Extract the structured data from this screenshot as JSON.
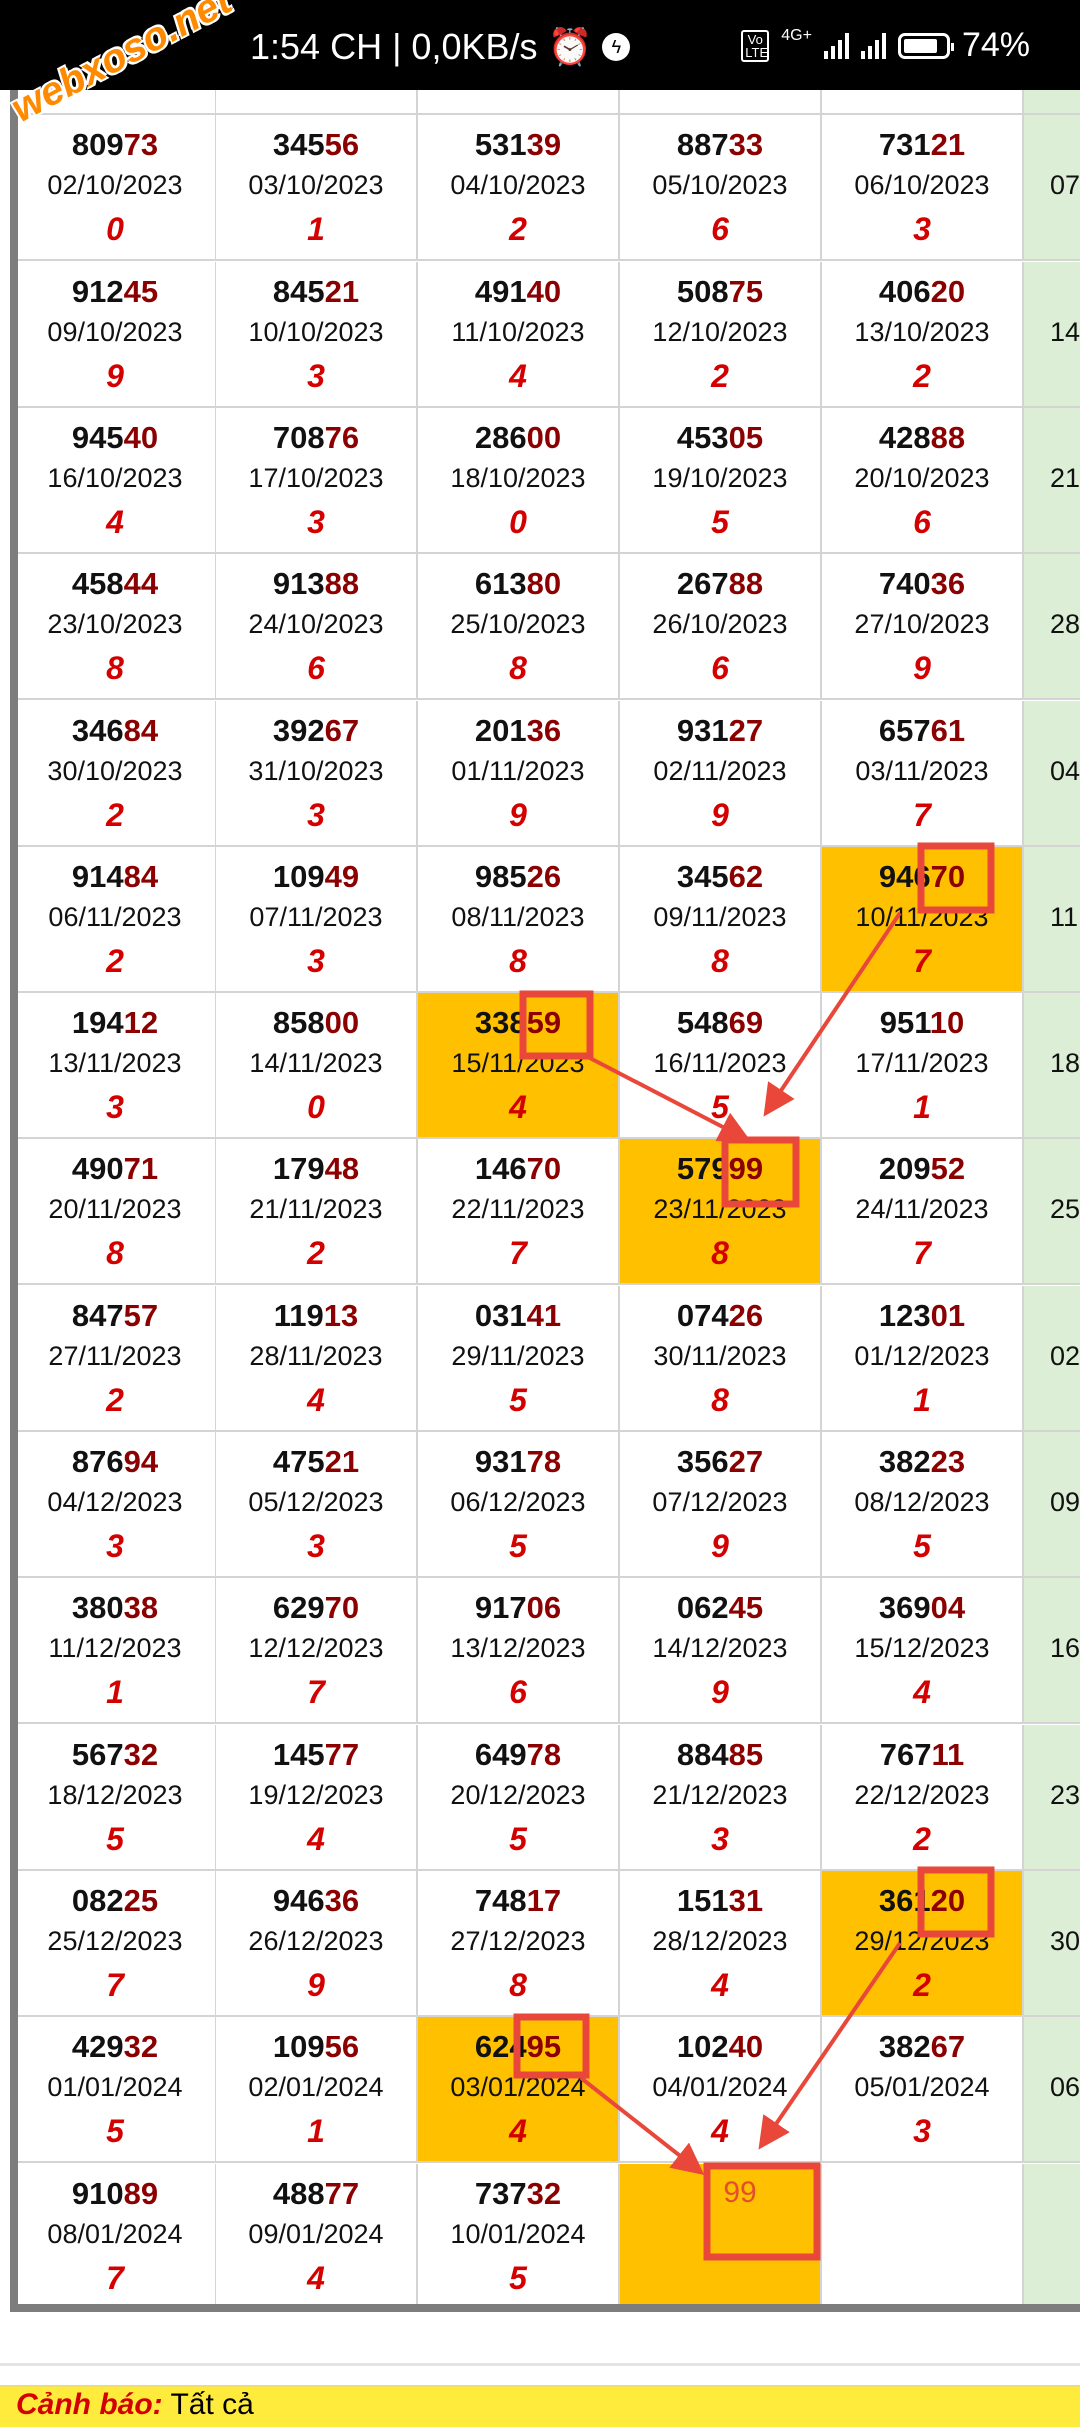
{
  "status_bar": {
    "time": "1:54 CH",
    "net_speed": "| 0,0KB/s",
    "network": "4G+",
    "volte": "Vo LTE",
    "battery": "74%",
    "icons": [
      "alarm-icon",
      "messenger-icon",
      "volte-icon",
      "signal-icon",
      "signal-icon",
      "battery-icon"
    ]
  },
  "watermark": "webxoso.net",
  "colors": {
    "highlight": "#ffc000",
    "suffix": "#8b0000",
    "digit": "#d40000",
    "marker": "#e8473a",
    "next_column": "#dcefd6"
  },
  "rows": [
    {
      "cells": [
        {
          "n": "80973",
          "d": "02/10/2023",
          "g": "0"
        },
        {
          "n": "34556",
          "d": "03/10/2023",
          "g": "1"
        },
        {
          "n": "53139",
          "d": "04/10/2023",
          "g": "2"
        },
        {
          "n": "88733",
          "d": "05/10/2023",
          "g": "6"
        },
        {
          "n": "73121",
          "d": "06/10/2023",
          "g": "3"
        }
      ],
      "next": "07"
    },
    {
      "cells": [
        {
          "n": "91245",
          "d": "09/10/2023",
          "g": "9"
        },
        {
          "n": "84521",
          "d": "10/10/2023",
          "g": "3"
        },
        {
          "n": "49140",
          "d": "11/10/2023",
          "g": "4"
        },
        {
          "n": "50875",
          "d": "12/10/2023",
          "g": "2"
        },
        {
          "n": "40620",
          "d": "13/10/2023",
          "g": "2"
        }
      ],
      "next": "14"
    },
    {
      "cells": [
        {
          "n": "94540",
          "d": "16/10/2023",
          "g": "4"
        },
        {
          "n": "70876",
          "d": "17/10/2023",
          "g": "3"
        },
        {
          "n": "28600",
          "d": "18/10/2023",
          "g": "0"
        },
        {
          "n": "45305",
          "d": "19/10/2023",
          "g": "5"
        },
        {
          "n": "42888",
          "d": "20/10/2023",
          "g": "6"
        }
      ],
      "next": "21"
    },
    {
      "cells": [
        {
          "n": "45844",
          "d": "23/10/2023",
          "g": "8"
        },
        {
          "n": "91388",
          "d": "24/10/2023",
          "g": "6"
        },
        {
          "n": "61380",
          "d": "25/10/2023",
          "g": "8"
        },
        {
          "n": "26788",
          "d": "26/10/2023",
          "g": "6"
        },
        {
          "n": "74036",
          "d": "27/10/2023",
          "g": "9"
        }
      ],
      "next": "28"
    },
    {
      "cells": [
        {
          "n": "34684",
          "d": "30/10/2023",
          "g": "2"
        },
        {
          "n": "39267",
          "d": "31/10/2023",
          "g": "3"
        },
        {
          "n": "20136",
          "d": "01/11/2023",
          "g": "9"
        },
        {
          "n": "93127",
          "d": "02/11/2023",
          "g": "9"
        },
        {
          "n": "65761",
          "d": "03/11/2023",
          "g": "7"
        }
      ],
      "next": "04"
    },
    {
      "cells": [
        {
          "n": "91484",
          "d": "06/11/2023",
          "g": "2"
        },
        {
          "n": "10949",
          "d": "07/11/2023",
          "g": "3"
        },
        {
          "n": "98526",
          "d": "08/11/2023",
          "g": "8"
        },
        {
          "n": "34562",
          "d": "09/11/2023",
          "g": "8"
        },
        {
          "n": "94670",
          "d": "10/11/2023",
          "g": "7",
          "hl": true
        }
      ],
      "next": "11"
    },
    {
      "cells": [
        {
          "n": "19412",
          "d": "13/11/2023",
          "g": "3"
        },
        {
          "n": "85800",
          "d": "14/11/2023",
          "g": "0"
        },
        {
          "n": "33859",
          "d": "15/11/2023",
          "g": "4",
          "hl": true
        },
        {
          "n": "54869",
          "d": "16/11/2023",
          "g": "5"
        },
        {
          "n": "95110",
          "d": "17/11/2023",
          "g": "1"
        }
      ],
      "next": "18"
    },
    {
      "cells": [
        {
          "n": "49071",
          "d": "20/11/2023",
          "g": "8"
        },
        {
          "n": "17948",
          "d": "21/11/2023",
          "g": "2"
        },
        {
          "n": "14670",
          "d": "22/11/2023",
          "g": "7"
        },
        {
          "n": "57999",
          "d": "23/11/2023",
          "g": "8",
          "hl": true
        },
        {
          "n": "20952",
          "d": "24/11/2023",
          "g": "7"
        }
      ],
      "next": "25"
    },
    {
      "cells": [
        {
          "n": "84757",
          "d": "27/11/2023",
          "g": "2"
        },
        {
          "n": "11913",
          "d": "28/11/2023",
          "g": "4"
        },
        {
          "n": "03141",
          "d": "29/11/2023",
          "g": "5"
        },
        {
          "n": "07426",
          "d": "30/11/2023",
          "g": "8"
        },
        {
          "n": "12301",
          "d": "01/12/2023",
          "g": "1"
        }
      ],
      "next": "02"
    },
    {
      "cells": [
        {
          "n": "87694",
          "d": "04/12/2023",
          "g": "3"
        },
        {
          "n": "47521",
          "d": "05/12/2023",
          "g": "3"
        },
        {
          "n": "93178",
          "d": "06/12/2023",
          "g": "5"
        },
        {
          "n": "35627",
          "d": "07/12/2023",
          "g": "9"
        },
        {
          "n": "38223",
          "d": "08/12/2023",
          "g": "5"
        }
      ],
      "next": "09"
    },
    {
      "cells": [
        {
          "n": "38038",
          "d": "11/12/2023",
          "g": "1"
        },
        {
          "n": "62970",
          "d": "12/12/2023",
          "g": "7"
        },
        {
          "n": "91706",
          "d": "13/12/2023",
          "g": "6"
        },
        {
          "n": "06245",
          "d": "14/12/2023",
          "g": "9"
        },
        {
          "n": "36904",
          "d": "15/12/2023",
          "g": "4"
        }
      ],
      "next": "16"
    },
    {
      "cells": [
        {
          "n": "56732",
          "d": "18/12/2023",
          "g": "5"
        },
        {
          "n": "14577",
          "d": "19/12/2023",
          "g": "4"
        },
        {
          "n": "64978",
          "d": "20/12/2023",
          "g": "5"
        },
        {
          "n": "88485",
          "d": "21/12/2023",
          "g": "3"
        },
        {
          "n": "76711",
          "d": "22/12/2023",
          "g": "2"
        }
      ],
      "next": "23"
    },
    {
      "cells": [
        {
          "n": "08225",
          "d": "25/12/2023",
          "g": "7"
        },
        {
          "n": "94636",
          "d": "26/12/2023",
          "g": "9"
        },
        {
          "n": "74817",
          "d": "27/12/2023",
          "g": "8"
        },
        {
          "n": "15131",
          "d": "28/12/2023",
          "g": "4"
        },
        {
          "n": "36120",
          "d": "29/12/2023",
          "g": "2",
          "hl": true
        }
      ],
      "next": "30"
    },
    {
      "cells": [
        {
          "n": "42932",
          "d": "01/01/2024",
          "g": "5"
        },
        {
          "n": "10956",
          "d": "02/01/2024",
          "g": "1"
        },
        {
          "n": "62495",
          "d": "03/01/2024",
          "g": "4",
          "hl": true
        },
        {
          "n": "10240",
          "d": "04/01/2024",
          "g": "4"
        },
        {
          "n": "38267",
          "d": "05/01/2024",
          "g": "3"
        }
      ],
      "next": "06"
    },
    {
      "cells": [
        {
          "n": "91089",
          "d": "08/01/2024",
          "g": "7"
        },
        {
          "n": "48877",
          "d": "09/01/2024",
          "g": "4"
        },
        {
          "n": "73732",
          "d": "10/01/2024",
          "g": "5"
        },
        {
          "pred": "99",
          "hl": true
        },
        {}
      ],
      "next": ""
    }
  ],
  "warning": {
    "label": "Cảnh báo:",
    "text": "Tất cả"
  }
}
